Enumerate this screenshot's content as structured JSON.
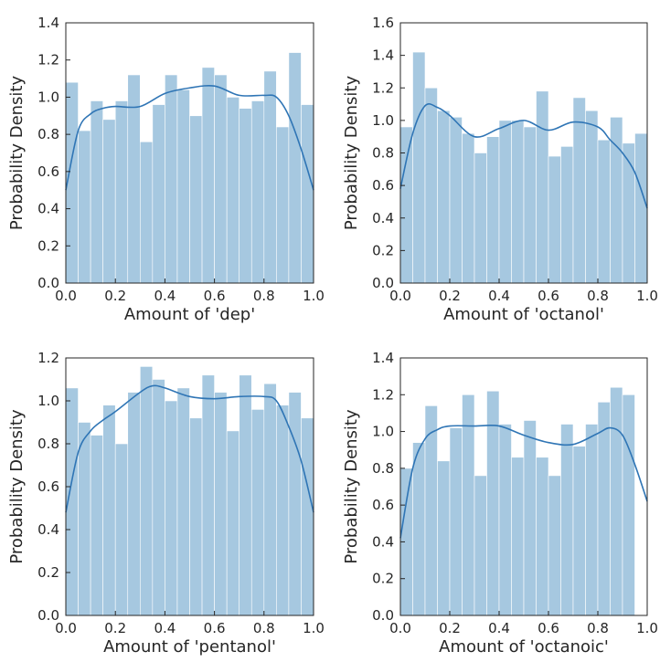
{
  "colors": {
    "bar": "#a6c8e0",
    "kde": "#2f75b5"
  },
  "chart_data": [
    {
      "type": "bar",
      "xlabel": "Amount of 'dep'",
      "ylabel": "Probability Density",
      "xlim": [
        0.0,
        1.0
      ],
      "ylim": [
        0.0,
        1.4
      ],
      "xticks": [
        "0.0",
        "0.2",
        "0.4",
        "0.6",
        "0.8",
        "1.0"
      ],
      "yticks": [
        "0.0",
        "0.2",
        "0.4",
        "0.6",
        "0.8",
        "1.0",
        "1.2",
        "1.4"
      ],
      "bin_edges": [
        0.0,
        0.05,
        0.1,
        0.15,
        0.2,
        0.25,
        0.3,
        0.35,
        0.4,
        0.45,
        0.5,
        0.55,
        0.6,
        0.65,
        0.7,
        0.75,
        0.8,
        0.85,
        0.9,
        0.95,
        1.0
      ],
      "values": [
        1.08,
        0.82,
        0.98,
        0.88,
        0.98,
        1.12,
        0.76,
        0.96,
        1.12,
        1.04,
        0.9,
        1.16,
        1.12,
        1.0,
        0.94,
        0.98,
        1.14,
        0.84,
        1.24,
        0.96
      ],
      "kde": {
        "x": [
          0.0,
          0.05,
          0.1,
          0.15,
          0.2,
          0.3,
          0.4,
          0.5,
          0.6,
          0.7,
          0.8,
          0.85,
          0.9,
          0.95,
          1.0
        ],
        "y": [
          0.5,
          0.82,
          0.91,
          0.94,
          0.95,
          0.95,
          1.02,
          1.05,
          1.06,
          1.01,
          1.01,
          1.0,
          0.9,
          0.72,
          0.5
        ]
      }
    },
    {
      "type": "bar",
      "xlabel": "Amount of 'octanol'",
      "ylabel": "Probability Density",
      "xlim": [
        0.0,
        1.0
      ],
      "ylim": [
        0.0,
        1.6
      ],
      "xticks": [
        "0.0",
        "0.2",
        "0.4",
        "0.6",
        "0.8",
        "1.0"
      ],
      "yticks": [
        "0.0",
        "0.2",
        "0.4",
        "0.6",
        "0.8",
        "1.0",
        "1.2",
        "1.4",
        "1.6"
      ],
      "bin_edges": [
        0.0,
        0.05,
        0.1,
        0.15,
        0.2,
        0.25,
        0.3,
        0.35,
        0.4,
        0.45,
        0.5,
        0.55,
        0.6,
        0.65,
        0.7,
        0.75,
        0.8,
        0.85,
        0.9,
        0.95,
        1.0
      ],
      "values": [
        0.96,
        1.42,
        1.2,
        1.06,
        1.02,
        0.92,
        0.8,
        0.9,
        1.0,
        1.0,
        0.96,
        1.18,
        0.78,
        0.84,
        1.14,
        1.06,
        0.88,
        1.02,
        0.86,
        0.92
      ],
      "kde": {
        "x": [
          0.0,
          0.05,
          0.1,
          0.15,
          0.2,
          0.3,
          0.4,
          0.5,
          0.6,
          0.7,
          0.8,
          0.85,
          0.9,
          0.95,
          1.0
        ],
        "y": [
          0.58,
          0.92,
          1.09,
          1.08,
          1.03,
          0.9,
          0.95,
          1.0,
          0.94,
          0.99,
          0.96,
          0.88,
          0.8,
          0.68,
          0.46
        ]
      }
    },
    {
      "type": "bar",
      "xlabel": "Amount of 'pentanol'",
      "ylabel": "Probability Density",
      "xlim": [
        0.0,
        1.0
      ],
      "ylim": [
        0.0,
        1.2
      ],
      "xticks": [
        "0.0",
        "0.2",
        "0.4",
        "0.6",
        "0.8",
        "1.0"
      ],
      "yticks": [
        "0.0",
        "0.2",
        "0.4",
        "0.6",
        "0.8",
        "1.0",
        "1.2"
      ],
      "bin_edges": [
        0.0,
        0.05,
        0.1,
        0.15,
        0.2,
        0.25,
        0.3,
        0.35,
        0.4,
        0.45,
        0.5,
        0.55,
        0.6,
        0.65,
        0.7,
        0.75,
        0.8,
        0.85,
        0.9,
        0.95,
        1.0
      ],
      "values": [
        1.06,
        0.9,
        0.84,
        0.98,
        0.8,
        1.04,
        1.16,
        1.1,
        1.0,
        1.06,
        0.92,
        1.12,
        1.04,
        0.86,
        1.12,
        0.96,
        1.08,
        0.98,
        1.04,
        0.92
      ],
      "kde": {
        "x": [
          0.0,
          0.05,
          0.1,
          0.15,
          0.2,
          0.3,
          0.35,
          0.4,
          0.5,
          0.6,
          0.7,
          0.8,
          0.85,
          0.9,
          0.95,
          1.0
        ],
        "y": [
          0.48,
          0.76,
          0.86,
          0.91,
          0.95,
          1.04,
          1.07,
          1.06,
          1.02,
          1.01,
          1.02,
          1.02,
          1.0,
          0.88,
          0.72,
          0.48
        ]
      }
    },
    {
      "type": "bar",
      "xlabel": "Amount of 'octanoic'",
      "ylabel": "Probability Density",
      "xlim": [
        0.0,
        1.0
      ],
      "ylim": [
        0.0,
        1.4
      ],
      "xticks": [
        "0.0",
        "0.2",
        "0.4",
        "0.6",
        "0.8",
        "1.0"
      ],
      "yticks": [
        "0.0",
        "0.2",
        "0.4",
        "0.6",
        "0.8",
        "1.0",
        "1.2",
        "1.4"
      ],
      "bin_edges": [
        0.0,
        0.05,
        0.1,
        0.15,
        0.2,
        0.25,
        0.3,
        0.35,
        0.4,
        0.45,
        0.5,
        0.55,
        0.6,
        0.65,
        0.7,
        0.75,
        0.8,
        0.85,
        0.9,
        0.95,
        1.0
      ],
      "values": [
        0.8,
        0.94,
        1.14,
        0.84,
        1.02,
        1.2,
        0.76,
        1.22,
        1.04,
        0.86,
        1.06,
        0.86,
        0.76,
        1.04,
        0.92,
        1.04,
        1.16,
        1.24,
        1.2,
        0.0
      ],
      "kde": {
        "x": [
          0.0,
          0.05,
          0.1,
          0.15,
          0.2,
          0.3,
          0.4,
          0.5,
          0.6,
          0.7,
          0.8,
          0.85,
          0.9,
          0.95,
          1.0
        ],
        "y": [
          0.42,
          0.8,
          0.96,
          1.01,
          1.03,
          1.03,
          1.03,
          0.98,
          0.94,
          0.93,
          0.99,
          1.02,
          0.98,
          0.82,
          0.62
        ]
      }
    }
  ]
}
